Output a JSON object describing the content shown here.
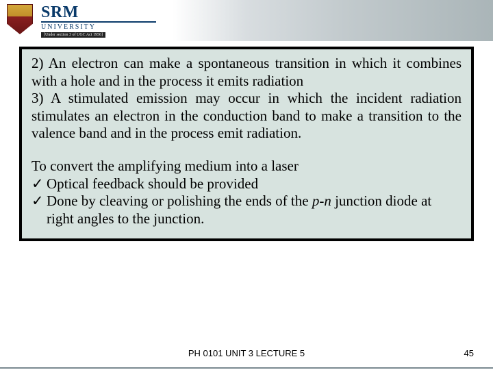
{
  "header": {
    "brand_name": "SRM",
    "brand_sub": "UNIVERSITY",
    "brand_tag": "[Under section 3 of UGC Act 1956]"
  },
  "slide": {
    "para1": "2) An electron can make a spontaneous transition in which it combines with a hole and in the process it emits radiation\n3) A stimulated emission may occur in which the incident radiation stimulates an electron in the conduction band to make a transition to the valence band and in the process emit radiation.",
    "para2_intro": "To convert the amplifying medium into a laser",
    "bullets": [
      {
        "check": "✓",
        "text_pre": "Optical feedback should be provided",
        "italic": "",
        "text_post": ""
      },
      {
        "check": "✓",
        "text_pre": "Done by cleaving or polishing the ends of the ",
        "italic": "p-n",
        "text_post": " junction diode at right angles to the junction."
      }
    ]
  },
  "footer": {
    "center": "PH 0101 UNIT 3   LECTURE 5",
    "page": "45"
  },
  "colors": {
    "content_bg": "#d7e3df",
    "frame": "#000000",
    "brand": "#0a3a6a"
  }
}
